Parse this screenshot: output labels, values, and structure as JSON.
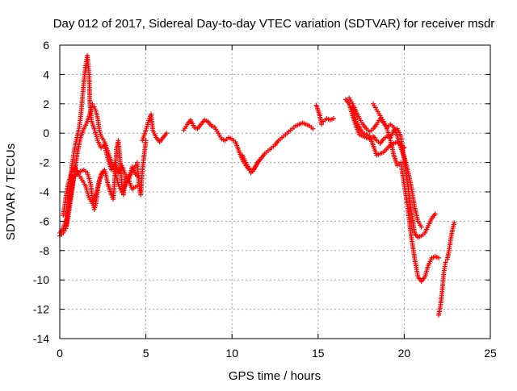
{
  "chart_data": {
    "type": "scatter",
    "title": "Day 012 of 2017, Sidereal Day-to-day VTEC variation (SDTVAR) for receiver msdr",
    "xlabel": "GPS time / hours",
    "ylabel": "SDTVAR / TECUs",
    "xlim": [
      0,
      25
    ],
    "ylim": [
      -14,
      6
    ],
    "xticks": [
      0,
      5,
      10,
      15,
      20,
      25
    ],
    "yticks": [
      -14,
      -12,
      -10,
      -8,
      -6,
      -4,
      -2,
      0,
      2,
      4,
      6
    ],
    "xtick_labels": [
      "0",
      "5",
      "10",
      "15",
      "20",
      "25"
    ],
    "ytick_labels": [
      "-14",
      "-12",
      "-10",
      "-8",
      "-6",
      "-4",
      "-2",
      "0",
      "2",
      "4",
      "6"
    ],
    "grid": true,
    "marker": "+",
    "marker_color": "#ff0000",
    "series": [
      {
        "segments": [
          [
            [
              0.0,
              -7.0
            ],
            [
              0.2,
              -6.8
            ],
            [
              0.35,
              -6.5
            ],
            [
              0.5,
              -5.2
            ],
            [
              0.6,
              -3.8
            ],
            [
              0.7,
              -2.2
            ],
            [
              0.8,
              -1.5
            ],
            [
              0.9,
              -0.8
            ],
            [
              1.0,
              -0.3
            ],
            [
              1.1,
              0.2
            ],
            [
              1.2,
              1.0
            ],
            [
              1.3,
              2.2
            ],
            [
              1.4,
              3.5
            ],
            [
              1.5,
              4.6
            ],
            [
              1.6,
              5.3
            ],
            [
              1.7,
              4.0
            ],
            [
              1.75,
              2.0
            ],
            [
              1.85,
              0.8
            ],
            [
              2.0,
              0.3
            ],
            [
              2.2,
              -0.5
            ],
            [
              2.4,
              -1.0
            ],
            [
              2.6,
              -0.8
            ],
            [
              2.8,
              -1.8
            ],
            [
              3.0,
              -2.5
            ],
            [
              3.2,
              -2.0
            ],
            [
              3.4,
              -2.7
            ],
            [
              3.6,
              -2.2
            ],
            [
              3.8,
              -2.8
            ],
            [
              4.0,
              -3.2
            ],
            [
              4.2,
              -2.3
            ],
            [
              4.4,
              -2.8
            ],
            [
              4.6,
              -3.0
            ]
          ],
          [
            [
              0.0,
              -6.8
            ],
            [
              0.2,
              -6.5
            ],
            [
              0.4,
              -5.8
            ],
            [
              0.6,
              -4.5
            ],
            [
              0.8,
              -3.0
            ],
            [
              1.0,
              -2.8
            ],
            [
              1.2,
              -2.6
            ],
            [
              1.4,
              -2.5
            ],
            [
              1.6,
              -2.7
            ],
            [
              1.8,
              -3.5
            ],
            [
              1.9,
              -4.5
            ],
            [
              2.0,
              -5.2
            ],
            [
              2.1,
              -4.8
            ],
            [
              2.2,
              -3.8
            ],
            [
              2.4,
              -2.8
            ],
            [
              2.6,
              -2.5
            ],
            [
              2.8,
              -3.5
            ],
            [
              3.0,
              -4.2
            ],
            [
              3.1,
              -4.5
            ],
            [
              3.2,
              -3.0
            ],
            [
              3.3,
              -1.0
            ],
            [
              3.4,
              -0.5
            ],
            [
              3.5,
              -1.8
            ],
            [
              3.6,
              -3.5
            ],
            [
              3.7,
              -4.2
            ],
            [
              3.8,
              -3.0
            ],
            [
              4.0,
              -3.2
            ],
            [
              4.2,
              -3.8
            ],
            [
              4.5,
              -3.6
            ]
          ],
          [
            [
              0.4,
              -6.3
            ],
            [
              0.6,
              -4.8
            ],
            [
              0.8,
              -3.2
            ],
            [
              1.0,
              -1.5
            ],
            [
              1.2,
              -0.3
            ],
            [
              1.4,
              0.3
            ],
            [
              1.6,
              0.8
            ],
            [
              1.8,
              1.5
            ],
            [
              1.9,
              2.0
            ],
            [
              2.0,
              1.8
            ],
            [
              2.1,
              1.5
            ],
            [
              2.2,
              1.0
            ],
            [
              2.3,
              0.2
            ],
            [
              2.4,
              -0.2
            ],
            [
              2.6,
              -0.6
            ],
            [
              2.8,
              -1.3
            ],
            [
              3.0,
              -2.0
            ],
            [
              3.2,
              -2.6
            ],
            [
              3.4,
              -3.5
            ],
            [
              3.6,
              -4.0
            ],
            [
              3.8,
              -3.6
            ],
            [
              4.0,
              -3.0
            ],
            [
              4.2,
              -2.6
            ],
            [
              4.4,
              -2.2
            ],
            [
              4.5,
              -2.0
            ],
            [
              4.6,
              -3.5
            ],
            [
              4.7,
              -4.2
            ],
            [
              4.8,
              -2.5
            ],
            [
              4.9,
              -1.5
            ],
            [
              5.0,
              -0.5
            ]
          ],
          [
            [
              0.2,
              -5.6
            ],
            [
              0.4,
              -4.0
            ],
            [
              0.5,
              -3.4
            ],
            [
              0.7,
              -2.6
            ],
            [
              0.9,
              -2.3
            ],
            [
              1.1,
              -2.8
            ],
            [
              1.3,
              -3.2
            ],
            [
              1.5,
              -3.6
            ],
            [
              1.7,
              -4.4
            ],
            [
              1.9,
              -4.8
            ],
            [
              2.1,
              -4.2
            ],
            [
              2.3,
              -3.2
            ],
            [
              2.5,
              -2.6
            ]
          ],
          [
            [
              4.8,
              -0.5
            ],
            [
              5.0,
              0.2
            ],
            [
              5.1,
              0.6
            ],
            [
              5.2,
              1.0
            ],
            [
              5.3,
              1.3
            ],
            [
              5.4,
              0.2
            ],
            [
              5.6,
              -0.3
            ],
            [
              5.8,
              -0.6
            ],
            [
              6.0,
              -0.3
            ],
            [
              6.2,
              0.0
            ]
          ],
          [
            [
              7.2,
              0.2
            ],
            [
              7.4,
              0.6
            ],
            [
              7.6,
              0.9
            ],
            [
              7.8,
              0.4
            ],
            [
              8.0,
              0.3
            ],
            [
              8.2,
              0.6
            ],
            [
              8.4,
              0.9
            ],
            [
              8.6,
              0.8
            ],
            [
              8.8,
              0.5
            ],
            [
              9.0,
              0.4
            ],
            [
              9.2,
              0.0
            ],
            [
              9.4,
              -0.4
            ],
            [
              9.6,
              -0.5
            ],
            [
              9.8,
              -0.3
            ],
            [
              10.0,
              -0.4
            ],
            [
              10.2,
              -0.6
            ],
            [
              10.4,
              -1.2
            ],
            [
              10.6,
              -1.8
            ],
            [
              10.8,
              -2.2
            ],
            [
              11.0,
              -2.5
            ],
            [
              11.1,
              -2.7
            ],
            [
              11.3,
              -2.4
            ],
            [
              11.5,
              -2.0
            ],
            [
              11.7,
              -1.7
            ],
            [
              11.9,
              -1.4
            ],
            [
              12.1,
              -1.2
            ],
            [
              12.3,
              -1.0
            ],
            [
              12.5,
              -0.8
            ],
            [
              12.7,
              -0.5
            ],
            [
              12.9,
              -0.3
            ],
            [
              13.1,
              -0.1
            ],
            [
              13.3,
              0.1
            ],
            [
              13.5,
              0.3
            ],
            [
              13.7,
              0.5
            ],
            [
              13.9,
              0.6
            ],
            [
              14.1,
              0.7
            ],
            [
              14.3,
              0.6
            ],
            [
              14.5,
              0.5
            ],
            [
              14.7,
              0.3
            ]
          ],
          [
            [
              10.6,
              -1.5
            ],
            [
              10.8,
              -2.0
            ],
            [
              11.0,
              -2.4
            ],
            [
              11.2,
              -2.6
            ],
            [
              11.4,
              -2.2
            ],
            [
              11.6,
              -1.8
            ]
          ],
          [
            [
              14.9,
              1.9
            ],
            [
              15.1,
              1.2
            ],
            [
              15.2,
              0.6
            ],
            [
              15.3,
              0.8
            ],
            [
              15.5,
              1.0
            ],
            [
              15.7,
              0.9
            ],
            [
              15.9,
              1.0
            ]
          ],
          [
            [
              16.6,
              2.3
            ],
            [
              16.8,
              2.0
            ],
            [
              17.0,
              1.2
            ],
            [
              17.2,
              0.5
            ],
            [
              17.4,
              -0.1
            ],
            [
              17.6,
              -0.2
            ],
            [
              17.8,
              -0.3
            ],
            [
              18.0,
              -0.4
            ],
            [
              18.2,
              -0.2
            ],
            [
              18.4,
              -0.5
            ],
            [
              18.6,
              -0.7
            ],
            [
              18.8,
              -0.4
            ],
            [
              19.0,
              -0.2
            ],
            [
              19.2,
              -0.3
            ],
            [
              19.4,
              0.2
            ],
            [
              19.6,
              0.3
            ],
            [
              19.8,
              -0.2
            ],
            [
              20.0,
              -1.8
            ],
            [
              20.2,
              -3.5
            ],
            [
              20.4,
              -5.2
            ],
            [
              20.6,
              -6.8
            ],
            [
              20.8,
              -7.1
            ],
            [
              21.0,
              -7.0
            ],
            [
              21.2,
              -6.8
            ],
            [
              21.4,
              -6.3
            ],
            [
              21.6,
              -5.8
            ],
            [
              21.8,
              -5.5
            ]
          ],
          [
            [
              16.8,
              2.4
            ],
            [
              17.0,
              2.0
            ],
            [
              17.2,
              1.5
            ],
            [
              17.4,
              1.0
            ],
            [
              17.6,
              0.6
            ],
            [
              17.8,
              0.3
            ],
            [
              18.0,
              0.1
            ],
            [
              18.2,
              0.3
            ],
            [
              18.4,
              0.6
            ],
            [
              18.6,
              1.0
            ],
            [
              18.8,
              0.7
            ],
            [
              19.0,
              0.3
            ],
            [
              19.2,
              -0.5
            ],
            [
              19.4,
              -1.5
            ],
            [
              19.6,
              -2.2
            ],
            [
              19.8,
              -2.0
            ],
            [
              20.0,
              -3.5
            ],
            [
              20.2,
              -5.0
            ],
            [
              20.4,
              -7.0
            ],
            [
              20.6,
              -8.5
            ],
            [
              20.8,
              -9.8
            ],
            [
              21.0,
              -10.1
            ],
            [
              21.2,
              -9.8
            ],
            [
              21.4,
              -9.0
            ],
            [
              21.6,
              -8.5
            ],
            [
              21.8,
              -8.4
            ],
            [
              22.0,
              -8.5
            ]
          ],
          [
            [
              18.2,
              2.0
            ],
            [
              18.4,
              1.6
            ],
            [
              18.6,
              1.2
            ],
            [
              18.8,
              0.8
            ],
            [
              19.0,
              0.4
            ],
            [
              19.2,
              0.6
            ],
            [
              19.4,
              0.4
            ],
            [
              19.6,
              -0.2
            ],
            [
              19.8,
              -1.0
            ],
            [
              20.0,
              -1.6
            ],
            [
              20.2,
              -2.5
            ],
            [
              20.4,
              -3.6
            ],
            [
              20.6,
              -5.0
            ],
            [
              20.8,
              -6.0
            ],
            [
              21.0,
              -6.4
            ]
          ],
          [
            [
              17.0,
              1.8
            ],
            [
              17.2,
              0.8
            ],
            [
              17.6,
              0.0
            ],
            [
              18.0,
              -0.2
            ],
            [
              18.4,
              -1.5
            ],
            [
              18.8,
              -1.3
            ],
            [
              19.2,
              -0.8
            ],
            [
              19.6,
              -0.6
            ],
            [
              20.0,
              -1.0
            ]
          ],
          [
            [
              22.0,
              -12.4
            ],
            [
              22.1,
              -11.8
            ],
            [
              22.2,
              -10.8
            ],
            [
              22.3,
              -9.5
            ],
            [
              22.4,
              -8.8
            ],
            [
              22.5,
              -8.6
            ],
            [
              22.6,
              -8.0
            ],
            [
              22.7,
              -7.2
            ],
            [
              22.8,
              -6.6
            ],
            [
              22.9,
              -6.1
            ]
          ]
        ]
      }
    ]
  }
}
